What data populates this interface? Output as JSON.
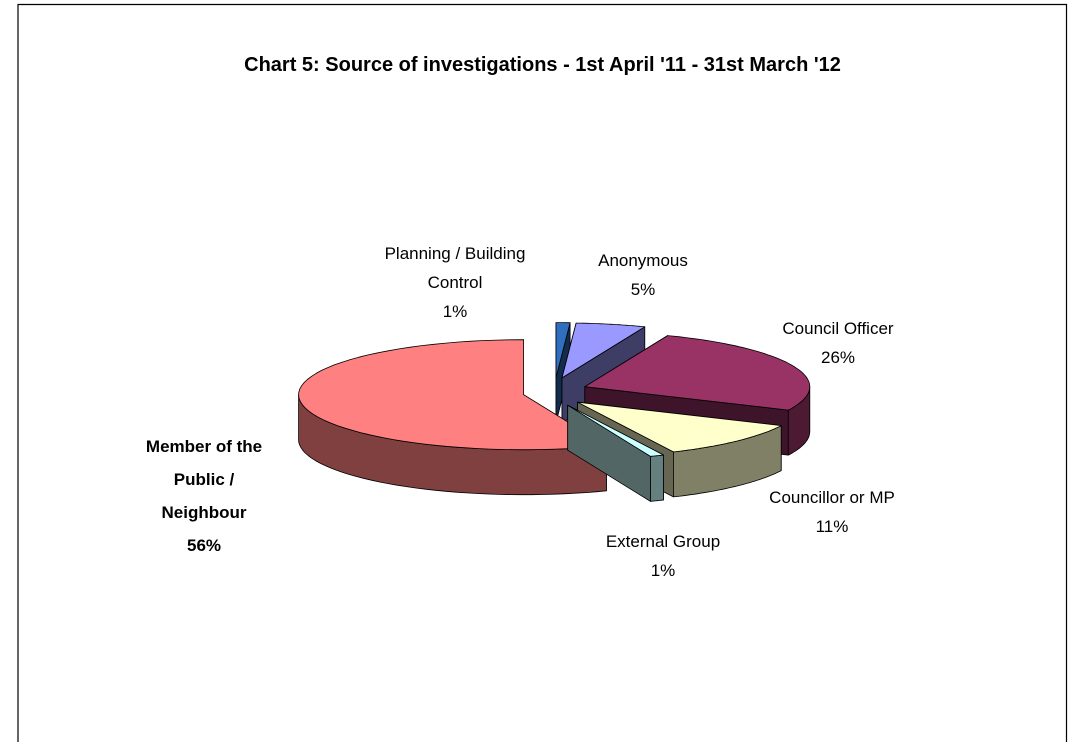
{
  "chart_data": {
    "type": "pie3d",
    "title": "Chart 5: Source of investigations - 1st April '11 - 31st March '12",
    "categories": [
      "Planning / Building Control",
      "Anonymous",
      "Council Officer",
      "Councillor or MP",
      "External Group",
      "Member of the Public / Neighbour"
    ],
    "values": [
      1,
      5,
      26,
      11,
      1,
      56
    ],
    "value_labels": [
      "1%",
      "5%",
      "26%",
      "11%",
      "1%",
      "56%"
    ],
    "colors": [
      "#2f6fc0",
      "#9999ff",
      "#993366",
      "#ffffcc",
      "#ccffff",
      "#ff8080"
    ]
  }
}
